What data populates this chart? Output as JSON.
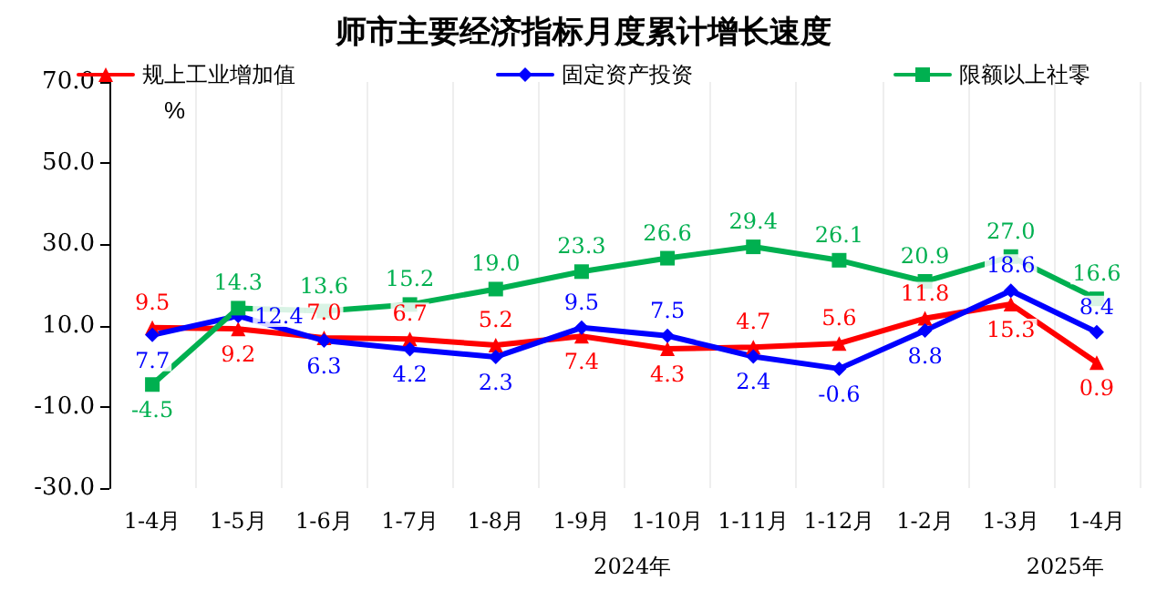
{
  "chart_data": {
    "type": "line",
    "title": "师市主要经济指标月度累计增长速度",
    "ylabel": "%",
    "categories": [
      "1-4月",
      "1-5月",
      "1-6月",
      "1-7月",
      "1-8月",
      "1-9月",
      "1-10月",
      "1-11月",
      "1-12月",
      "1-2月",
      "1-3月",
      "1-4月"
    ],
    "series": [
      {
        "name": "规上工业增加值",
        "color": "#ff0000",
        "marker": "triangle",
        "values": [
          9.5,
          9.2,
          7.0,
          6.7,
          5.2,
          7.4,
          4.3,
          4.7,
          5.6,
          11.8,
          15.3,
          0.9
        ],
        "value_labels": [
          "9.5",
          "9.2",
          "7.0",
          "6.7",
          "5.2",
          "7.4",
          "4.3",
          "4.7",
          "5.6",
          "11.8",
          "15.3",
          "0.9"
        ]
      },
      {
        "name": "固定资产投资",
        "color": "#0000ff",
        "marker": "diamond",
        "values": [
          7.7,
          12.4,
          6.3,
          4.2,
          2.3,
          9.5,
          7.5,
          2.4,
          -0.6,
          8.8,
          18.6,
          8.4
        ],
        "value_labels": [
          "7.7",
          "12.4",
          "6.3",
          "4.2",
          "2.3",
          "9.5",
          "7.5",
          "2.4",
          "-0.6",
          "8.8",
          "18.6",
          "8.4"
        ]
      },
      {
        "name": "限额以上社零",
        "color": "#00b050",
        "marker": "square",
        "values": [
          -4.5,
          14.3,
          13.6,
          15.2,
          19.0,
          23.3,
          26.6,
          29.4,
          26.1,
          20.9,
          27.0,
          16.6
        ],
        "value_labels": [
          "-4.5",
          "14.3",
          "13.6",
          "15.2",
          "19.0",
          "23.3",
          "26.6",
          "29.4",
          "26.1",
          "20.9",
          "27.0",
          "16.6"
        ]
      }
    ],
    "ylim": [
      -30,
      70
    ],
    "yticks": [
      {
        "value": -30,
        "label": "-30.0"
      },
      {
        "value": -10,
        "label": "-10.0"
      },
      {
        "value": 10,
        "label": "10.0"
      },
      {
        "value": 30,
        "label": "30.0"
      },
      {
        "value": 50,
        "label": "50.0"
      },
      {
        "value": 70,
        "label": "70.0"
      }
    ],
    "annotations": [
      "2024年",
      "2025年"
    ],
    "grid": "x",
    "legend": "top"
  }
}
